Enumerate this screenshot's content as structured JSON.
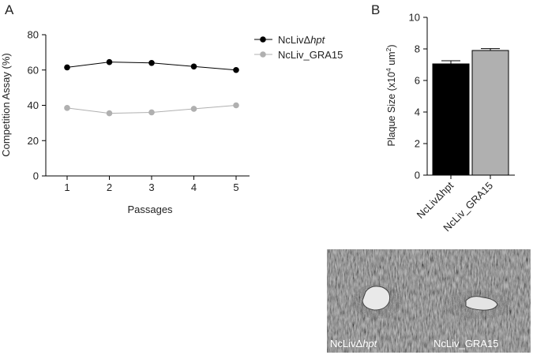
{
  "panel_a": {
    "label": "A"
  },
  "panel_b": {
    "label": "B"
  },
  "photo": {
    "label_left_prefix": "NcLivΔ",
    "label_left_italic": "hpt",
    "label_right": "NcLiv_GRA15"
  },
  "chart_data": [
    {
      "type": "line",
      "xlabel": "Passages",
      "ylabel": "Competition Assay (%)",
      "x": [
        1,
        2,
        3,
        4,
        5
      ],
      "ylim": [
        0,
        80
      ],
      "yticks": [
        0,
        20,
        40,
        60,
        80
      ],
      "legend": "top-right",
      "series": [
        {
          "name_prefix": "NcLivΔ",
          "name_italic": "hpt",
          "name": "NcLivΔhpt",
          "values": [
            61.5,
            64.5,
            64,
            62,
            60
          ],
          "color": "#000000"
        },
        {
          "name": "NcLiv_GRA15",
          "values": [
            38.5,
            35.5,
            36,
            38,
            40
          ],
          "color": "#b0b0b0"
        }
      ],
      "grid": false
    },
    {
      "type": "bar",
      "ylabel_main": "Plaque Size (x10",
      "ylabel_sup1": "4",
      "ylabel_mid": " um",
      "ylabel_sup2": "2",
      "ylabel_end": ")",
      "categories": [
        "NcLivΔhpt",
        "NcLiv_GRA15"
      ],
      "values": [
        7.05,
        7.9
      ],
      "errors": [
        0.2,
        0.12
      ],
      "colors": [
        "#000000",
        "#b0b0b0"
      ],
      "ylim": [
        0,
        10
      ],
      "yticks": [
        0,
        2,
        4,
        6,
        8,
        10
      ],
      "grid": false
    }
  ]
}
